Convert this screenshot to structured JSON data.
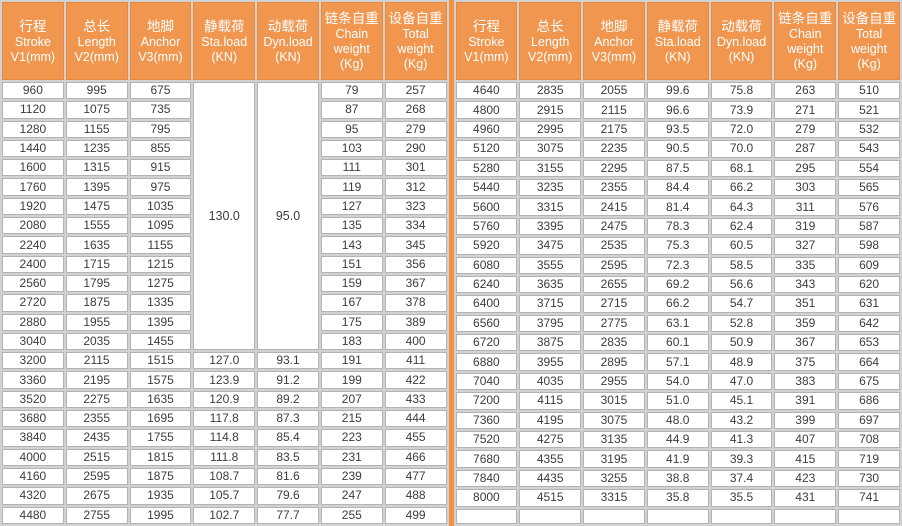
{
  "colors": {
    "header_bg": "#f0964f",
    "header_text": "#ffffff",
    "divider_orange": "#f0913d",
    "cell_border": "#b3b3b3",
    "grid_background": "#d2d2d2",
    "data_text": "#3c3c3c"
  },
  "table": {
    "headers": [
      {
        "lines": [
          "行程",
          "Stroke",
          "V1(mm)"
        ]
      },
      {
        "lines": [
          "总长",
          "Length",
          "V2(mm)"
        ]
      },
      {
        "lines": [
          "地脚",
          "Anchor",
          "V3(mm)"
        ]
      },
      {
        "lines": [
          "静载荷",
          "Sta.load",
          "(KN)"
        ]
      },
      {
        "lines": [
          "动载荷",
          "Dyn.load",
          "(KN)"
        ]
      },
      {
        "lines": [
          "链条自重",
          "Chain",
          "weight",
          "(Kg)"
        ]
      },
      {
        "lines": [
          "设备自重",
          "Total",
          "weight",
          "(Kg)"
        ]
      }
    ],
    "left": {
      "merged": {
        "columns": [
          3,
          4
        ],
        "span": 14,
        "sta_load": "130.0",
        "dyn_load": "95.0"
      },
      "rows": [
        [
          "960",
          "995",
          "675",
          null,
          null,
          "79",
          "257"
        ],
        [
          "1120",
          "1075",
          "735",
          null,
          null,
          "87",
          "268"
        ],
        [
          "1280",
          "1155",
          "795",
          null,
          null,
          "95",
          "279"
        ],
        [
          "1440",
          "1235",
          "855",
          null,
          null,
          "103",
          "290"
        ],
        [
          "1600",
          "1315",
          "915",
          null,
          null,
          "111",
          "301"
        ],
        [
          "1760",
          "1395",
          "975",
          null,
          null,
          "119",
          "312"
        ],
        [
          "1920",
          "1475",
          "1035",
          null,
          null,
          "127",
          "323"
        ],
        [
          "2080",
          "1555",
          "1095",
          null,
          null,
          "135",
          "334"
        ],
        [
          "2240",
          "1635",
          "1155",
          null,
          null,
          "143",
          "345"
        ],
        [
          "2400",
          "1715",
          "1215",
          null,
          null,
          "151",
          "356"
        ],
        [
          "2560",
          "1795",
          "1275",
          null,
          null,
          "159",
          "367"
        ],
        [
          "2720",
          "1875",
          "1335",
          null,
          null,
          "167",
          "378"
        ],
        [
          "2880",
          "1955",
          "1395",
          null,
          null,
          "175",
          "389"
        ],
        [
          "3040",
          "2035",
          "1455",
          null,
          null,
          "183",
          "400"
        ],
        [
          "3200",
          "2115",
          "1515",
          "127.0",
          "93.1",
          "191",
          "411"
        ],
        [
          "3360",
          "2195",
          "1575",
          "123.9",
          "91.2",
          "199",
          "422"
        ],
        [
          "3520",
          "2275",
          "1635",
          "120.9",
          "89.2",
          "207",
          "433"
        ],
        [
          "3680",
          "2355",
          "1695",
          "117.8",
          "87.3",
          "215",
          "444"
        ],
        [
          "3840",
          "2435",
          "1755",
          "114.8",
          "85.4",
          "223",
          "455"
        ],
        [
          "4000",
          "2515",
          "1815",
          "111.8",
          "83.5",
          "231",
          "466"
        ],
        [
          "4160",
          "2595",
          "1875",
          "108.7",
          "81.6",
          "239",
          "477"
        ],
        [
          "4320",
          "2675",
          "1935",
          "105.7",
          "79.6",
          "247",
          "488"
        ],
        [
          "4480",
          "2755",
          "1995",
          "102.7",
          "77.7",
          "255",
          "499"
        ]
      ]
    },
    "right": {
      "merged": null,
      "rows": [
        [
          "4640",
          "2835",
          "2055",
          "99.6",
          "75.8",
          "263",
          "510"
        ],
        [
          "4800",
          "2915",
          "2115",
          "96.6",
          "73.9",
          "271",
          "521"
        ],
        [
          "4960",
          "2995",
          "2175",
          "93.5",
          "72.0",
          "279",
          "532"
        ],
        [
          "5120",
          "3075",
          "2235",
          "90.5",
          "70.0",
          "287",
          "543"
        ],
        [
          "5280",
          "3155",
          "2295",
          "87.5",
          "68.1",
          "295",
          "554"
        ],
        [
          "5440",
          "3235",
          "2355",
          "84.4",
          "66.2",
          "303",
          "565"
        ],
        [
          "5600",
          "3315",
          "2415",
          "81.4",
          "64.3",
          "311",
          "576"
        ],
        [
          "5760",
          "3395",
          "2475",
          "78.3",
          "62.4",
          "319",
          "587"
        ],
        [
          "5920",
          "3475",
          "2535",
          "75.3",
          "60.5",
          "327",
          "598"
        ],
        [
          "6080",
          "3555",
          "2595",
          "72.3",
          "58.5",
          "335",
          "609"
        ],
        [
          "6240",
          "3635",
          "2655",
          "69.2",
          "56.6",
          "343",
          "620"
        ],
        [
          "6400",
          "3715",
          "2715",
          "66.2",
          "54.7",
          "351",
          "631"
        ],
        [
          "6560",
          "3795",
          "2775",
          "63.1",
          "52.8",
          "359",
          "642"
        ],
        [
          "6720",
          "3875",
          "2835",
          "60.1",
          "50.9",
          "367",
          "653"
        ],
        [
          "6880",
          "3955",
          "2895",
          "57.1",
          "48.9",
          "375",
          "664"
        ],
        [
          "7040",
          "4035",
          "2955",
          "54.0",
          "47.0",
          "383",
          "675"
        ],
        [
          "7200",
          "4115",
          "3015",
          "51.0",
          "45.1",
          "391",
          "686"
        ],
        [
          "7360",
          "4195",
          "3075",
          "48.0",
          "43.2",
          "399",
          "697"
        ],
        [
          "7520",
          "4275",
          "3135",
          "44.9",
          "41.3",
          "407",
          "708"
        ],
        [
          "7680",
          "4355",
          "3195",
          "41.9",
          "39.3",
          "415",
          "719"
        ],
        [
          "7840",
          "4435",
          "3255",
          "38.8",
          "37.4",
          "423",
          "730"
        ],
        [
          "8000",
          "4515",
          "3315",
          "35.8",
          "35.5",
          "431",
          "741"
        ],
        [
          "",
          "",
          "",
          "",
          "",
          "",
          ""
        ]
      ]
    }
  }
}
